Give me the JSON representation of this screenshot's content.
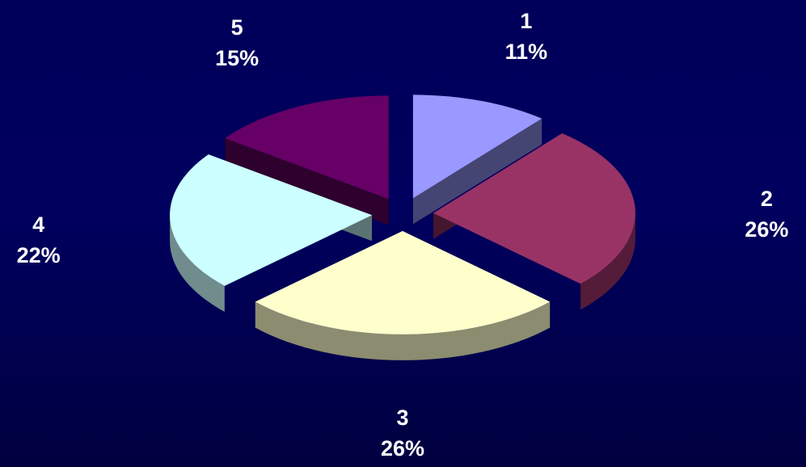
{
  "chart_data": {
    "type": "pie",
    "style": "3d-exploded",
    "title": "",
    "slices": [
      {
        "category": "1",
        "value": 11,
        "label": "11%",
        "color": "#9999ff"
      },
      {
        "category": "2",
        "value": 26,
        "label": "26%",
        "color": "#993366"
      },
      {
        "category": "3",
        "value": 26,
        "label": "26%",
        "color": "#ffffcc"
      },
      {
        "category": "4",
        "value": 22,
        "label": "22%",
        "color": "#ccffff"
      },
      {
        "category": "5",
        "value": 15,
        "label": "15%",
        "color": "#660066"
      }
    ]
  }
}
